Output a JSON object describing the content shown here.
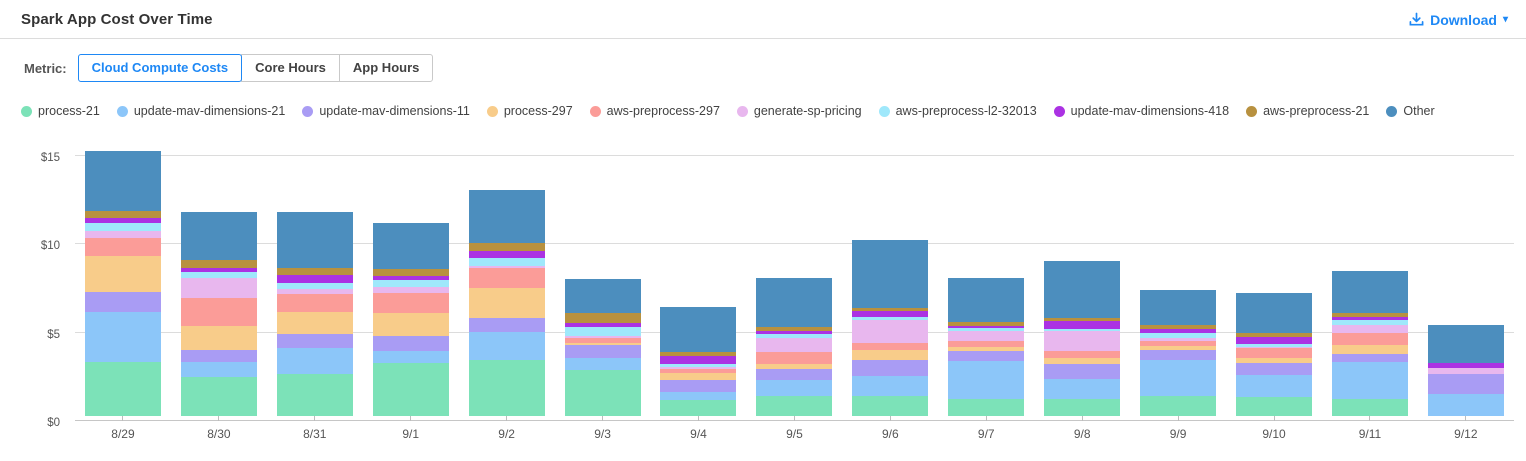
{
  "header": {
    "title": "Spark App Cost Over Time",
    "download_label": "Download",
    "download_caret": "▾"
  },
  "metric": {
    "label": "Metric:",
    "options": [
      {
        "label": "Cloud Compute Costs",
        "selected": true
      },
      {
        "label": "Core Hours",
        "selected": false
      },
      {
        "label": "App Hours",
        "selected": false
      }
    ]
  },
  "colors": {
    "accent_blue": "#1E88F5",
    "axis_text": "#555555",
    "gridline": "#dcdcdc"
  },
  "chart_data": {
    "type": "bar",
    "stacked": true,
    "title": "Spark App Cost Over Time",
    "xlabel": "",
    "ylabel": "Cloud Compute Costs ($)",
    "ylim": [
      0,
      15
    ],
    "y_ticks": [
      "$0",
      "$5",
      "$10",
      "$15"
    ],
    "grid": true,
    "legend_position": "top",
    "categories": [
      "8/29",
      "8/30",
      "8/31",
      "9/1",
      "9/2",
      "9/3",
      "9/4",
      "9/5",
      "9/6",
      "9/7",
      "9/8",
      "9/9",
      "9/10",
      "9/11",
      "9/12"
    ],
    "series": [
      {
        "name": "process-21",
        "color": "#7CE2B8",
        "values": [
          3.06,
          2.19,
          2.36,
          3.01,
          3.2,
          2.58,
          0.9,
          1.12,
          1.12,
          0.94,
          0.94,
          1.12,
          1.09,
          0.99,
          0
        ]
      },
      {
        "name": "update-mav-dimensions-21",
        "color": "#8CC6F9",
        "values": [
          2.82,
          0.88,
          1.47,
          0.66,
          1.54,
          0.71,
          0.47,
          0.9,
          1.13,
          2.17,
          1.18,
          2.03,
          1.21,
          2.06,
          1.27
        ]
      },
      {
        "name": "update-mav-dimensions-11",
        "color": "#A99CF4",
        "values": [
          1.15,
          0.66,
          0.79,
          0.84,
          0.84,
          0.71,
          0.66,
          0.66,
          0.93,
          0.6,
          0.84,
          0.6,
          0.7,
          0.47,
          1.09
        ]
      },
      {
        "name": "process-297",
        "color": "#F8CC8A",
        "values": [
          2.01,
          1.36,
          1.25,
          1.31,
          1.69,
          0.12,
          0.41,
          0.24,
          0.53,
          0.19,
          0.34,
          0.19,
          0.3,
          0.52,
          0
        ]
      },
      {
        "name": "aws-preprocess-297",
        "color": "#FB9C98",
        "values": [
          1.02,
          1.61,
          1.03,
          1.13,
          1.12,
          0.3,
          0.24,
          0.69,
          0.41,
          0.34,
          0.41,
          0.3,
          0.56,
          0.64,
          0
        ]
      },
      {
        "name": "generate-sp-pricing",
        "color": "#E8B7EE",
        "values": [
          0.44,
          1.09,
          0.29,
          0.37,
          0.1,
          0.13,
          0.08,
          0.81,
          1.31,
          0.56,
          1.12,
          0.19,
          0.05,
          0.49,
          0.36
        ]
      },
      {
        "name": "aws-preprocess-l2-32013",
        "color": "#9FE8FB",
        "values": [
          0.45,
          0.38,
          0.32,
          0.38,
          0.43,
          0.52,
          0.19,
          0.22,
          0.19,
          0.19,
          0.1,
          0.25,
          0.18,
          0.28,
          0
        ]
      },
      {
        "name": "update-mav-dimensions-418",
        "color": "#AB32E3",
        "values": [
          0.25,
          0.22,
          0.47,
          0.22,
          0.41,
          0.22,
          0.43,
          0.19,
          0.3,
          0.13,
          0.43,
          0.22,
          0.38,
          0.17,
          0.28
        ]
      },
      {
        "name": "aws-preprocess-21",
        "color": "#B8913F",
        "values": [
          0.4,
          0.44,
          0.41,
          0.39,
          0.47,
          0.56,
          0.22,
          0.23,
          0.22,
          0.19,
          0.18,
          0.23,
          0.22,
          0.24,
          0
        ]
      },
      {
        "name": "Other",
        "color": "#4C8EBE",
        "values": [
          3.4,
          2.7,
          3.14,
          2.63,
          3.0,
          1.9,
          2.6,
          2.73,
          3.82,
          2.49,
          3.26,
          2.02,
          2.29,
          2.38,
          2.15
        ]
      }
    ]
  }
}
